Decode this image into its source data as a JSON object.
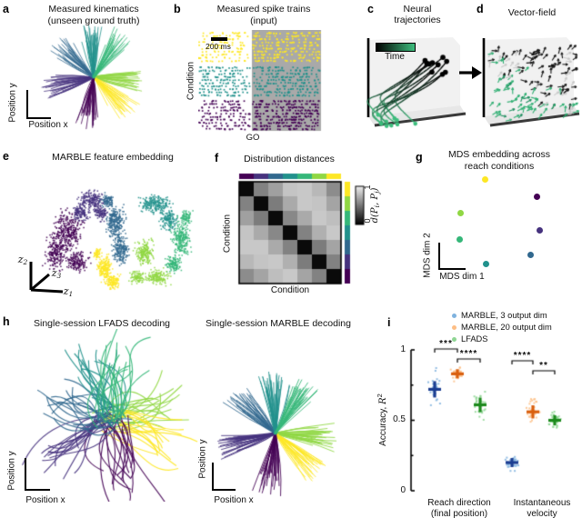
{
  "panels": {
    "a": {
      "label": "a",
      "title1": "Measured kinematics",
      "title2": "(unseen ground truth)",
      "xlabel": "Position x",
      "ylabel": "Position y"
    },
    "b": {
      "label": "b",
      "title1": "Measured spike trains",
      "title2": "(input)",
      "scalebar_label": "200 ms",
      "ylabel": "Condition",
      "event_label": "GO"
    },
    "c": {
      "label": "c",
      "title1": "Neural",
      "title2": "trajectories",
      "colorbar_label": "Time"
    },
    "d": {
      "label": "d",
      "title": "Vector-field"
    },
    "e": {
      "label": "e",
      "title": "MARBLE feature embedding",
      "ax_letter": "z",
      "ax1_sub": "1",
      "ax2_sub": "2",
      "ax3_sub": "3"
    },
    "f": {
      "label": "f",
      "title": "Distribution distances",
      "xlabel": "Condition",
      "ylabel": "Condition",
      "cbar_hi": "1",
      "cbar_lo": "0",
      "cbar_label": {
        "p1": "d(P",
        "sub1": "i",
        "p2": ", P",
        "sub2": "j",
        "p3": ")"
      }
    },
    "g": {
      "label": "g",
      "title1": "MDS embedding across",
      "title2": "reach conditions",
      "xlabel": "MDS dim 1",
      "ylabel": "MDS dim 2"
    },
    "h": {
      "label": "h",
      "title_left": "Single-session LFADS decoding",
      "title_right": "Single-session MARBLE decoding",
      "xlabel_left": "Position x",
      "ylabel_left": "Position y",
      "xlabel_right": "Position x",
      "ylabel_right": "Position y"
    },
    "i": {
      "label": "i",
      "ylabel_text": "Accuracy, ",
      "ylabel_math": "R",
      "ylabel_sup": "2",
      "ytick_top": "1",
      "ytick_mid": "0.5",
      "ytick_bot": "0",
      "group1_line1": "Reach direction",
      "group1_line2": "(final position)",
      "group2_line1": "Instantaneous",
      "group2_line2": "velocity"
    }
  },
  "chart_data": {
    "kinematics": {
      "type": "line",
      "description": "center-out reach trajectories, 7 conditions (viridis colors), flower arrangement",
      "conditions": [
        {
          "color": "#90d743",
          "dir_deg": -4
        },
        {
          "color": "#fde725",
          "dir_deg": -44
        },
        {
          "color": "#440154",
          "dir_deg": -98
        },
        {
          "color": "#46327e",
          "dir_deg": 193
        },
        {
          "color": "#31688e",
          "dir_deg": 136
        },
        {
          "color": "#21918c",
          "dir_deg": 93
        },
        {
          "color": "#35b779",
          "dir_deg": 57
        }
      ],
      "trajectories_per_condition": 28
    },
    "raster": {
      "type": "raster",
      "condition_colors": [
        "#fde725",
        "#21918c",
        "#440154"
      ],
      "rows_per_condition": 10,
      "go_region_start_frac": 0.43,
      "go_region_color": "#a9a9a9",
      "scalebar_ms": 200
    },
    "neural_trajectories": {
      "type": "trajectory3d",
      "n_trajectories": 10,
      "time_color_start": "#3dbd7d",
      "time_color_end": "#000000"
    },
    "vector_field": {
      "type": "quiver",
      "n_arrows": 150,
      "color_early": "#2fae72",
      "color_late": "#141414",
      "color_mid": "#c8c8c8"
    },
    "embedding": {
      "type": "scatter",
      "clusters": [
        {
          "color": "#440154",
          "blobs": [
            [
              52,
              72,
              14,
              20,
              320
            ],
            [
              38,
              95,
              10,
              16,
              200
            ],
            [
              62,
              105,
              12,
              10,
              160
            ]
          ]
        },
        {
          "color": "#46327e",
          "blobs": [
            [
              78,
              38,
              13,
              9,
              200
            ],
            [
              66,
              52,
              8,
              8,
              120
            ],
            [
              88,
              52,
              7,
              7,
              90
            ]
          ]
        },
        {
          "color": "#31688e",
          "blobs": [
            [
              104,
              62,
              9,
              16,
              260
            ],
            [
              110,
              92,
              8,
              14,
              200
            ],
            [
              96,
              38,
              7,
              6,
              90
            ]
          ]
        },
        {
          "color": "#fde725",
          "blobs": [
            [
              92,
              112,
              7,
              12,
              200
            ],
            [
              102,
              128,
              8,
              7,
              120
            ],
            [
              84,
              96,
              4,
              5,
              50
            ]
          ]
        },
        {
          "color": "#21918c",
          "blobs": [
            [
              148,
              42,
              16,
              9,
              220
            ],
            [
              163,
              60,
              8,
              10,
              140
            ]
          ]
        },
        {
          "color": "#35b779",
          "blobs": [
            [
              176,
              80,
              9,
              18,
              240
            ],
            [
              168,
              108,
              8,
              9,
              130
            ],
            [
              182,
              56,
              6,
              7,
              80
            ]
          ]
        },
        {
          "color": "#90d743",
          "blobs": [
            [
              136,
              95,
              9,
              12,
              200
            ],
            [
              150,
              122,
              12,
              8,
              160
            ],
            [
              128,
              122,
              7,
              7,
              90
            ]
          ]
        }
      ]
    },
    "distances": {
      "type": "heatmap",
      "value_range": [
        0,
        1
      ],
      "strip_top": [
        "#440154",
        "#46327e",
        "#31688e",
        "#21918c",
        "#35b779",
        "#90d743",
        "#fde725"
      ],
      "strip_right": [
        "#fde725",
        "#90d743",
        "#35b779",
        "#21918c",
        "#31688e",
        "#46327e",
        "#440154"
      ],
      "matrix": [
        [
          0.0,
          0.45,
          0.6,
          0.78,
          0.8,
          0.72,
          0.5
        ],
        [
          0.45,
          0.0,
          0.42,
          0.65,
          0.8,
          0.78,
          0.62
        ],
        [
          0.6,
          0.42,
          0.0,
          0.48,
          0.65,
          0.8,
          0.75
        ],
        [
          0.78,
          0.65,
          0.48,
          0.0,
          0.45,
          0.68,
          0.8
        ],
        [
          0.8,
          0.8,
          0.65,
          0.45,
          0.0,
          0.42,
          0.62
        ],
        [
          0.72,
          0.78,
          0.8,
          0.68,
          0.42,
          0.0,
          0.45
        ],
        [
          0.5,
          0.62,
          0.75,
          0.8,
          0.62,
          0.45,
          0.0
        ]
      ]
    },
    "mds": {
      "type": "scatter",
      "points": [
        {
          "color": "#fde725",
          "x": 0.486,
          "y": 0.07
        },
        {
          "color": "#440154",
          "x": 0.893,
          "y": 0.245
        },
        {
          "color": "#90d743",
          "x": 0.293,
          "y": 0.4
        },
        {
          "color": "#46327e",
          "x": 0.92,
          "y": 0.58
        },
        {
          "color": "#35b779",
          "x": 0.286,
          "y": 0.67
        },
        {
          "color": "#31688e",
          "x": 0.843,
          "y": 0.827
        },
        {
          "color": "#21918c",
          "x": 0.493,
          "y": 0.918
        }
      ]
    },
    "lfads_decoding": {
      "type": "line",
      "description": "noisy decoded trajectories, same 7 condition colors, rotated and entangled",
      "rotation_deg": 22,
      "curvature": 35,
      "trajectories_per_condition": 16
    },
    "accuracy": {
      "type": "scatter",
      "ylim": [
        0,
        1
      ],
      "legend": [
        {
          "label": "MARBLE, 3 output dim",
          "color": "#7fb2de"
        },
        {
          "label": "MARBLE, 20 output dim",
          "color": "#fdbe85"
        },
        {
          "label": "LFADS",
          "color": "#8fd694"
        }
      ],
      "groups": [
        {
          "label": "Reach direction (final position)",
          "series": [
            {
              "name": "MARBLE, 3 output dim",
              "mean": 0.72,
              "sd": 0.115,
              "n": 32,
              "point_color": "#7fb2de",
              "mean_color": "#1b3d91"
            },
            {
              "name": "MARBLE, 20 output dim",
              "mean": 0.83,
              "sd": 0.04,
              "n": 32,
              "point_color": "#fdbe85",
              "mean_color": "#d95f0e"
            },
            {
              "name": "LFADS",
              "mean": 0.61,
              "sd": 0.1,
              "n": 32,
              "point_color": "#8fd694",
              "mean_color": "#1d8a1d"
            }
          ]
        },
        {
          "label": "Instantaneous velocity",
          "series": [
            {
              "name": "MARBLE, 3 output dim",
              "mean": 0.2,
              "sd": 0.05,
              "n": 32,
              "point_color": "#7fb2de",
              "mean_color": "#1b3d91"
            },
            {
              "name": "MARBLE, 20 output dim",
              "mean": 0.56,
              "sd": 0.09,
              "n": 32,
              "point_color": "#fdbe85",
              "mean_color": "#d95f0e"
            },
            {
              "name": "LFADS",
              "mean": 0.5,
              "sd": 0.07,
              "n": 32,
              "point_color": "#8fd694",
              "mean_color": "#1d8a1d"
            }
          ]
        }
      ],
      "significance": [
        {
          "group": 0,
          "from": 0,
          "to": 1,
          "stars": "***"
        },
        {
          "group": 0,
          "from": 1,
          "to": 2,
          "stars": "****"
        },
        {
          "group": 1,
          "from": 0,
          "to": 1,
          "stars": "****"
        },
        {
          "group": 1,
          "from": 1,
          "to": 2,
          "stars": "**"
        }
      ]
    }
  }
}
